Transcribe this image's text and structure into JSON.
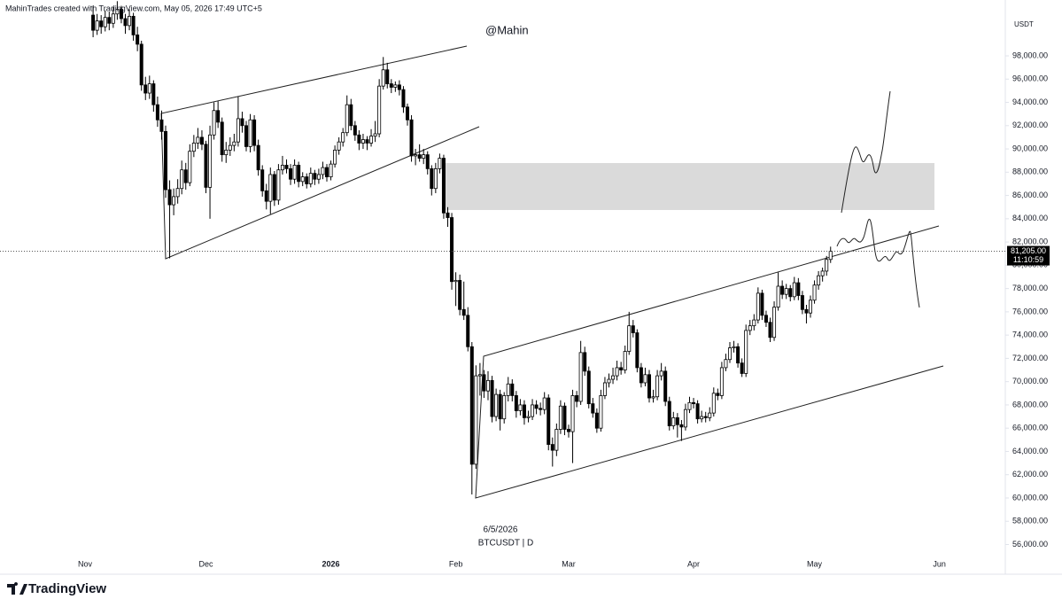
{
  "chart_data": {
    "type": "candlestick",
    "title": "MahinTrades created with TradingView.com, May 05, 2026 17:49 UTC+5",
    "watermark": "@Mahin",
    "y_axis_label": "USDT",
    "annotation_date": "6/5/2026",
    "symbol": "BTCUSDT | D",
    "brand": "TradingView",
    "last_price": {
      "value": 81205,
      "label": "81,205.00"
    },
    "countdown": "11:10:59",
    "up_color": "#ffffff",
    "down_color": "#000000",
    "ylim": [
      55200,
      102800
    ],
    "yticks": [
      {
        "value": 56000,
        "label": "56,000.00"
      },
      {
        "value": 58000,
        "label": "58,000.00"
      },
      {
        "value": 60000,
        "label": "60,000.00"
      },
      {
        "value": 62000,
        "label": "62,000.00"
      },
      {
        "value": 64000,
        "label": "64,000.00"
      },
      {
        "value": 66000,
        "label": "66,000.00"
      },
      {
        "value": 68000,
        "label": "68,000.00"
      },
      {
        "value": 70000,
        "label": "70,000.00"
      },
      {
        "value": 72000,
        "label": "72,000.00"
      },
      {
        "value": 74000,
        "label": "74,000.00"
      },
      {
        "value": 76000,
        "label": "76,000.00"
      },
      {
        "value": 78000,
        "label": "78,000.00"
      },
      {
        "value": 80000,
        "label": "80,000.00"
      },
      {
        "value": 82000,
        "label": "82,000.00"
      },
      {
        "value": 84000,
        "label": "84,000.00"
      },
      {
        "value": 86000,
        "label": "86,000.00"
      },
      {
        "value": 88000,
        "label": "88,000.00"
      },
      {
        "value": 90000,
        "label": "90,000.00"
      },
      {
        "value": 92000,
        "label": "92,000.00"
      },
      {
        "value": 94000,
        "label": "94,000.00"
      },
      {
        "value": 96000,
        "label": "96,000.00"
      },
      {
        "value": 98000,
        "label": "98,000.00"
      }
    ],
    "categories": [
      "Nov",
      null,
      null,
      null,
      null,
      null,
      null,
      null,
      null,
      null,
      null,
      null,
      null,
      null,
      null,
      null,
      null,
      null,
      null,
      null,
      null,
      null,
      null,
      null,
      null,
      null,
      null,
      null,
      null,
      null,
      "Dec",
      null,
      null,
      null,
      null,
      null,
      null,
      null,
      null,
      null,
      null,
      null,
      null,
      null,
      null,
      null,
      null,
      null,
      null,
      null,
      null,
      null,
      null,
      null,
      null,
      null,
      null,
      null,
      null,
      null,
      null,
      "2026",
      null,
      null,
      null,
      null,
      null,
      null,
      null,
      null,
      null,
      null,
      null,
      null,
      null,
      null,
      null,
      null,
      null,
      null,
      null,
      null,
      null,
      null,
      null,
      null,
      null,
      null,
      null,
      null,
      null,
      null,
      "Feb",
      null,
      null,
      null,
      null,
      null,
      null,
      null,
      null,
      null,
      null,
      null,
      null,
      null,
      null,
      null,
      null,
      null,
      null,
      null,
      null,
      null,
      null,
      null,
      null,
      null,
      null,
      null,
      "Mar",
      null,
      null,
      null,
      null,
      null,
      null,
      null,
      null,
      null,
      null,
      null,
      null,
      null,
      null,
      null,
      null,
      null,
      null,
      null,
      null,
      null,
      null,
      null,
      null,
      null,
      null,
      null,
      null,
      null,
      null,
      "Apr",
      null,
      null,
      null,
      null,
      null,
      null,
      null,
      null,
      null,
      null,
      null,
      null,
      null,
      null,
      null,
      null,
      null,
      null,
      null,
      null,
      null,
      null,
      null,
      null,
      null,
      null,
      null,
      null,
      null,
      "May",
      null,
      null,
      null,
      null,
      null,
      null,
      null,
      null,
      null,
      null,
      null,
      null,
      null,
      null,
      null,
      null,
      null,
      null,
      null,
      null,
      null,
      null,
      null,
      null,
      null,
      null,
      null,
      null,
      null,
      null,
      "Jun"
    ],
    "values": [
      null,
      null,
      [
        101500,
        102300,
        99600,
        100200
      ],
      [
        100200,
        101600,
        99800,
        101000
      ],
      [
        101000,
        101500,
        99900,
        100500
      ],
      [
        100500,
        101900,
        100100,
        101300
      ],
      [
        101300,
        101800,
        100200,
        100800
      ],
      [
        100800,
        102200,
        100400,
        101600
      ],
      [
        101600,
        102700,
        101100,
        102000
      ],
      [
        102000,
        102300,
        100800,
        101200
      ],
      [
        101200,
        101600,
        99900,
        100600
      ],
      [
        100600,
        102000,
        100200,
        101400
      ],
      [
        101400,
        101700,
        99300,
        99800
      ],
      [
        99800,
        100500,
        98400,
        99000
      ],
      [
        99000,
        99300,
        95000,
        95500
      ],
      [
        95500,
        96200,
        94200,
        94800
      ],
      [
        94800,
        96300,
        94300,
        95600
      ],
      [
        95600,
        95900,
        93200,
        93800
      ],
      [
        93800,
        94500,
        91900,
        92500
      ],
      [
        92500,
        93300,
        90800,
        91500
      ],
      [
        91500,
        92000,
        85800,
        86500
      ],
      [
        86500,
        87300,
        80600,
        85200
      ],
      [
        85200,
        86600,
        84300,
        85900
      ],
      [
        85900,
        87400,
        85300,
        86600
      ],
      [
        86600,
        89000,
        86100,
        88200
      ],
      [
        88200,
        88800,
        86500,
        87100
      ],
      [
        87100,
        90400,
        86800,
        89800
      ],
      [
        89800,
        91200,
        89300,
        90500
      ],
      [
        90500,
        91800,
        90000,
        91000
      ],
      [
        91000,
        91600,
        89900,
        90400
      ],
      [
        90400,
        90700,
        86200,
        86700
      ],
      [
        86700,
        92000,
        84000,
        91200
      ],
      [
        91200,
        94000,
        90800,
        93300
      ],
      [
        93300,
        94100,
        91800,
        92300
      ],
      [
        92300,
        92700,
        88900,
        89500
      ],
      [
        89500,
        90600,
        88800,
        89900
      ],
      [
        89900,
        91000,
        89400,
        90300
      ],
      [
        90300,
        91300,
        89800,
        90600
      ],
      [
        90600,
        94500,
        90200,
        92600
      ],
      [
        92600,
        93200,
        91400,
        92000
      ],
      [
        92000,
        92400,
        89800,
        90200
      ],
      [
        90200,
        93000,
        89700,
        92500
      ],
      [
        92500,
        92900,
        89800,
        90300
      ],
      [
        90300,
        90800,
        87700,
        88200
      ],
      [
        88200,
        88600,
        85900,
        86400
      ],
      [
        86400,
        87000,
        84800,
        85500
      ],
      [
        85500,
        88400,
        84400,
        87800
      ],
      [
        87800,
        88100,
        85100,
        85600
      ],
      [
        85600,
        88700,
        85200,
        88200
      ],
      [
        88200,
        89400,
        87800,
        88600
      ],
      [
        88600,
        89100,
        87900,
        88300
      ],
      [
        88300,
        88700,
        86900,
        87400
      ],
      [
        87400,
        89100,
        87000,
        88600
      ],
      [
        88600,
        88900,
        86700,
        87200
      ],
      [
        87200,
        88000,
        86800,
        87600
      ],
      [
        87600,
        87900,
        86600,
        87000
      ],
      [
        87000,
        88400,
        86700,
        87900
      ],
      [
        87900,
        88200,
        86900,
        87400
      ],
      [
        87400,
        88300,
        87000,
        87800
      ],
      [
        87800,
        88900,
        87400,
        88400
      ],
      [
        88400,
        88700,
        87200,
        87600
      ],
      [
        87600,
        89000,
        87300,
        88700
      ],
      [
        88700,
        90300,
        88400,
        89900
      ],
      [
        89900,
        91000,
        89500,
        90600
      ],
      [
        90600,
        91800,
        90200,
        91400
      ],
      [
        91400,
        94600,
        91100,
        93800
      ],
      [
        93800,
        94300,
        91600,
        92000
      ],
      [
        92000,
        92400,
        90700,
        91200
      ],
      [
        91200,
        91600,
        89900,
        90500
      ],
      [
        90500,
        91300,
        90000,
        90800
      ],
      [
        90800,
        91100,
        89900,
        90500
      ],
      [
        90500,
        91700,
        90200,
        91100
      ],
      [
        91100,
        92400,
        90600,
        91300
      ],
      [
        91300,
        96000,
        91000,
        95400
      ],
      [
        95400,
        97900,
        95100,
        96800
      ],
      [
        96800,
        97400,
        95200,
        95600
      ],
      [
        95600,
        96000,
        94800,
        95300
      ],
      [
        95300,
        95800,
        94900,
        95500
      ],
      [
        95500,
        95900,
        94600,
        95100
      ],
      [
        95100,
        95400,
        93100,
        93600
      ],
      [
        93600,
        93900,
        92000,
        92500
      ],
      [
        92500,
        92900,
        88900,
        89400
      ],
      [
        89400,
        90000,
        88600,
        89500
      ],
      [
        89500,
        90400,
        88900,
        89200
      ],
      [
        89200,
        90000,
        88700,
        89500
      ],
      [
        89500,
        89800,
        87800,
        88300
      ],
      [
        88300,
        88600,
        86000,
        86600
      ],
      [
        86600,
        88800,
        86200,
        88300
      ],
      [
        88300,
        89600,
        87900,
        89200
      ],
      [
        89200,
        89500,
        84000,
        84500
      ],
      [
        84500,
        85000,
        83300,
        84100
      ],
      [
        84100,
        84500,
        77900,
        78600
      ],
      [
        78600,
        79400,
        76500,
        78700
      ],
      [
        78700,
        79200,
        75700,
        76200
      ],
      [
        76200,
        78600,
        75300,
        75700
      ],
      [
        75700,
        76400,
        72600,
        73000
      ],
      [
        73000,
        73400,
        60300,
        62900
      ],
      [
        62900,
        71400,
        62500,
        70500
      ],
      [
        70500,
        71600,
        68800,
        70600
      ],
      [
        70600,
        71000,
        68600,
        69200
      ],
      [
        69200,
        70900,
        68400,
        70100
      ],
      [
        70100,
        70500,
        66500,
        67000
      ],
      [
        67000,
        69400,
        66600,
        68900
      ],
      [
        68900,
        69300,
        65800,
        66800
      ],
      [
        66800,
        69100,
        66400,
        68800
      ],
      [
        68800,
        70400,
        68300,
        69800
      ],
      [
        69800,
        70200,
        68300,
        68800
      ],
      [
        68800,
        69200,
        66900,
        67500
      ],
      [
        67500,
        68500,
        67100,
        68000
      ],
      [
        68000,
        68400,
        66300,
        66900
      ],
      [
        66900,
        67500,
        66500,
        67000
      ],
      [
        67000,
        68500,
        66700,
        68000
      ],
      [
        68000,
        68400,
        67200,
        67700
      ],
      [
        67700,
        68200,
        67100,
        67600
      ],
      [
        67600,
        69100,
        67200,
        68600
      ],
      [
        68600,
        68900,
        64100,
        64600
      ],
      [
        64600,
        65200,
        62700,
        64100
      ],
      [
        64100,
        66400,
        63600,
        65900
      ],
      [
        65900,
        68400,
        65500,
        67900
      ],
      [
        67900,
        68200,
        65400,
        65900
      ],
      [
        65900,
        66300,
        65200,
        65700
      ],
      [
        65700,
        69300,
        63000,
        68800
      ],
      [
        68800,
        69200,
        67800,
        68300
      ],
      [
        68300,
        73500,
        68000,
        72500
      ],
      [
        72500,
        73000,
        70500,
        70900
      ],
      [
        70900,
        71300,
        67700,
        68100
      ],
      [
        68100,
        68600,
        66900,
        67300
      ],
      [
        67300,
        67700,
        65600,
        66000
      ],
      [
        66000,
        69300,
        65700,
        68800
      ],
      [
        68800,
        70400,
        68500,
        69900
      ],
      [
        69900,
        70700,
        69500,
        70200
      ],
      [
        70200,
        71200,
        69800,
        70500
      ],
      [
        70500,
        71800,
        70100,
        71200
      ],
      [
        71200,
        71700,
        70600,
        71000
      ],
      [
        71000,
        73100,
        70700,
        72600
      ],
      [
        72600,
        76000,
        72300,
        74800
      ],
      [
        74800,
        75300,
        73800,
        74200
      ],
      [
        74200,
        74500,
        70800,
        71200
      ],
      [
        71200,
        71600,
        69500,
        69900
      ],
      [
        69900,
        71200,
        69600,
        70600
      ],
      [
        70600,
        71000,
        68200,
        68600
      ],
      [
        68600,
        69300,
        68200,
        68700
      ],
      [
        68700,
        71000,
        68400,
        70500
      ],
      [
        70500,
        71600,
        70100,
        70900
      ],
      [
        70900,
        71300,
        67900,
        68300
      ],
      [
        68300,
        68700,
        65800,
        66200
      ],
      [
        66200,
        67400,
        65900,
        66900
      ],
      [
        66900,
        67300,
        65200,
        66300
      ],
      [
        66300,
        66700,
        64900,
        66100
      ],
      [
        66100,
        68100,
        65800,
        67600
      ],
      [
        67600,
        68700,
        67300,
        68200
      ],
      [
        68200,
        68600,
        67700,
        68100
      ],
      [
        68100,
        68400,
        66400,
        66800
      ],
      [
        66800,
        67500,
        66500,
        67000
      ],
      [
        67000,
        67400,
        66500,
        66900
      ],
      [
        66900,
        67800,
        66600,
        67300
      ],
      [
        67300,
        69500,
        67000,
        69000
      ],
      [
        69000,
        69400,
        68400,
        68800
      ],
      [
        68800,
        71700,
        68500,
        71200
      ],
      [
        71200,
        72400,
        70900,
        71900
      ],
      [
        71900,
        73400,
        71600,
        72900
      ],
      [
        72900,
        73500,
        72500,
        73000
      ],
      [
        73000,
        73300,
        71200,
        71600
      ],
      [
        71600,
        72000,
        70400,
        70700
      ],
      [
        70700,
        74900,
        70400,
        74400
      ],
      [
        74400,
        75300,
        74000,
        74800
      ],
      [
        74800,
        75800,
        74400,
        75300
      ],
      [
        75300,
        78100,
        75000,
        77600
      ],
      [
        77600,
        77900,
        75300,
        75700
      ],
      [
        75700,
        76100,
        74700,
        75100
      ],
      [
        75100,
        75500,
        73400,
        73800
      ],
      [
        73800,
        76900,
        73500,
        76400
      ],
      [
        76400,
        79400,
        76100,
        78200
      ],
      [
        78200,
        78700,
        77100,
        77500
      ],
      [
        77500,
        78400,
        77100,
        78000
      ],
      [
        78000,
        78300,
        76900,
        77300
      ],
      [
        77300,
        79000,
        77000,
        78500
      ],
      [
        78500,
        78900,
        77000,
        77400
      ],
      [
        77400,
        77800,
        75800,
        76200
      ],
      [
        76200,
        76600,
        75000,
        75900
      ],
      [
        75900,
        77400,
        75500,
        77000
      ],
      [
        77000,
        78700,
        76700,
        78300
      ],
      [
        78300,
        79500,
        77900,
        79100
      ],
      [
        79100,
        79800,
        78600,
        79500
      ],
      [
        79500,
        80800,
        79100,
        80500
      ],
      [
        80500,
        81600,
        80200,
        81205
      ],
      null,
      null,
      null,
      null,
      null,
      null,
      null,
      null,
      null,
      null,
      null,
      null,
      null,
      null,
      null,
      null,
      null,
      null,
      null,
      null,
      null,
      null,
      null,
      null,
      null,
      null,
      null
    ]
  }
}
